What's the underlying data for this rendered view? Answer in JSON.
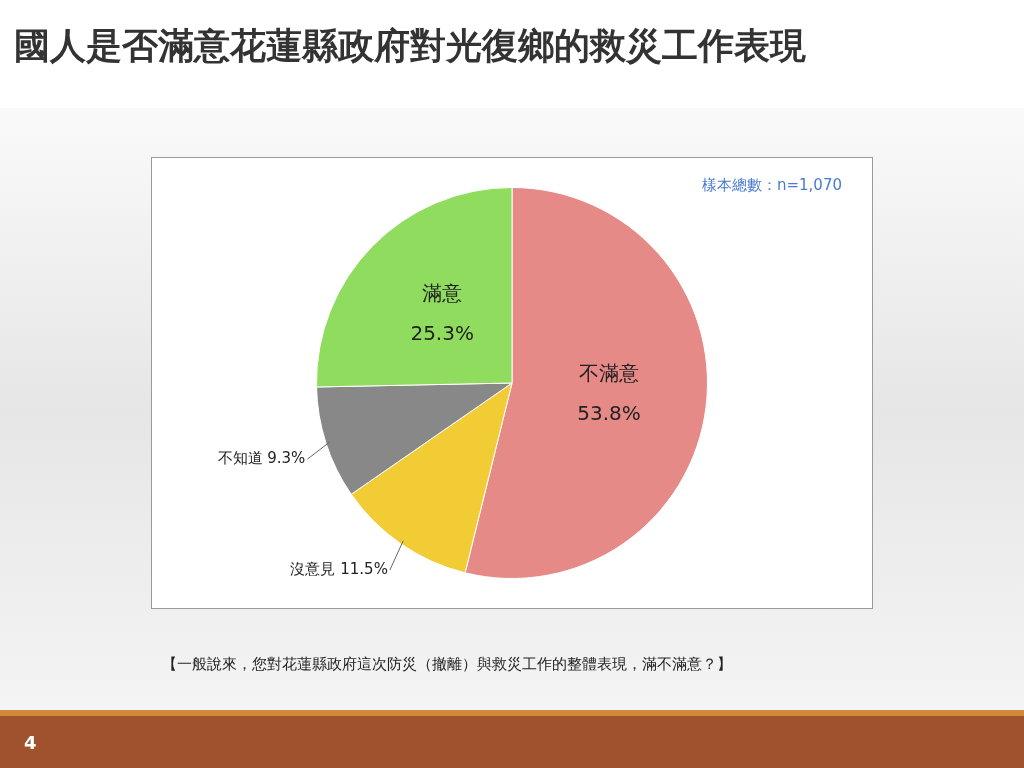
{
  "chart_data": {
    "type": "pie",
    "title": "國人是否滿意花蓮縣政府對光復鄉的救災工作表現",
    "categories": [
      "不滿意",
      "沒意見",
      "不知道",
      "滿意"
    ],
    "values": [
      53.8,
      11.5,
      9.3,
      25.3
    ],
    "colors": [
      "#e58a87",
      "#f2cc35",
      "#888888",
      "#8fdc5e"
    ],
    "value_labels": [
      "53.8%",
      "11.5%",
      "9.3%",
      "25.3%"
    ],
    "legend": false,
    "annotations": [
      "樣本總數：n=1,070",
      "【一般說來，您對花蓮縣政府這次防災（撤離）與救災工作的整體表現，滿不滿意？】",
      "4"
    ]
  }
}
